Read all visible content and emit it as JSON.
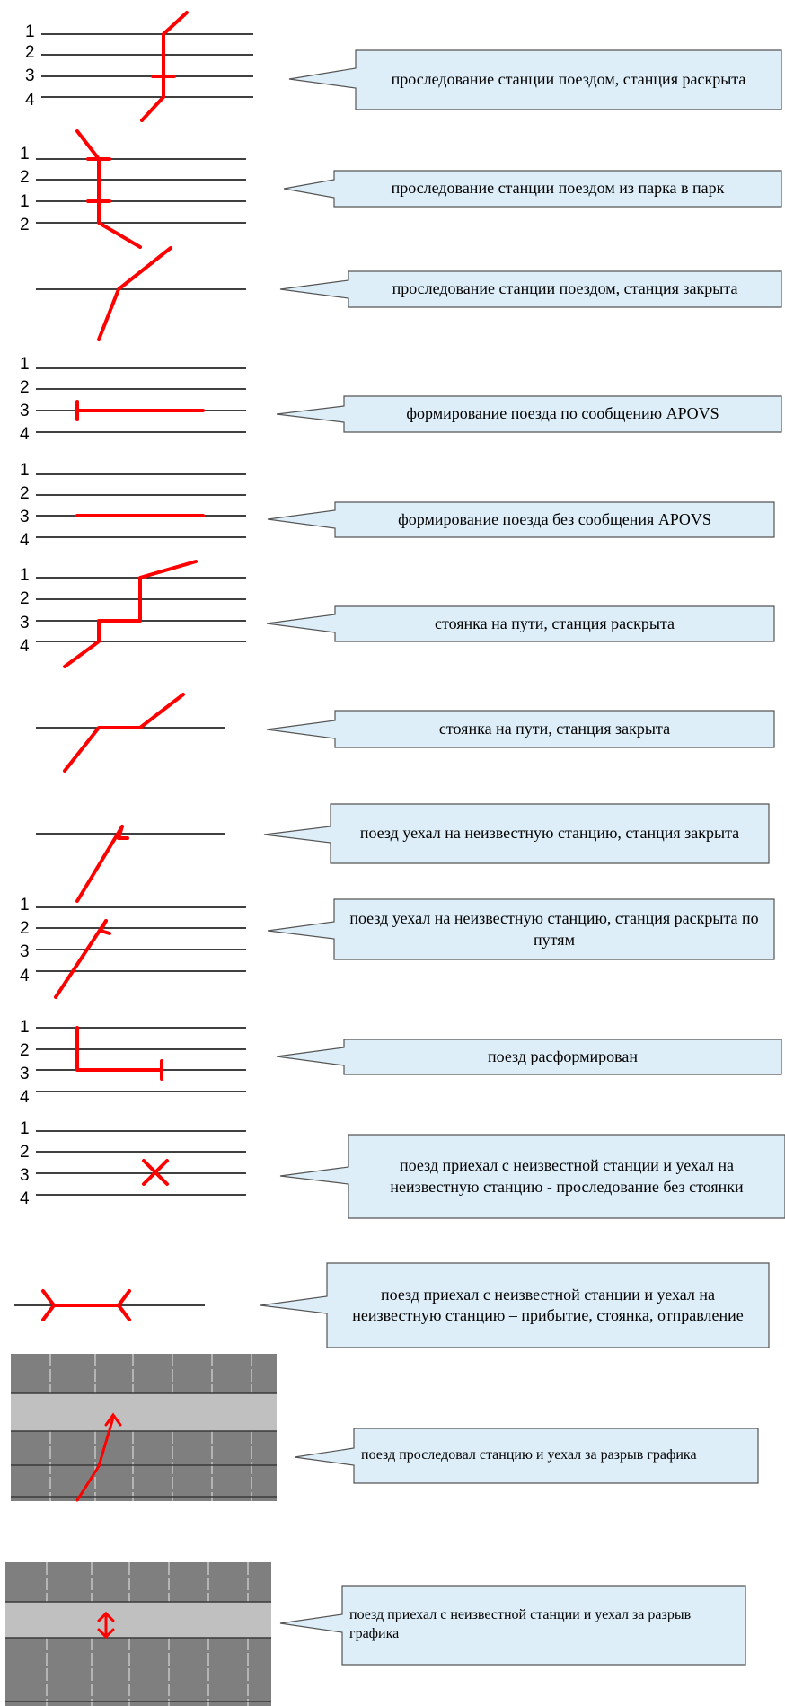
{
  "track_numbers": {
    "set_a": [
      "1",
      "2",
      "3",
      "4"
    ],
    "set_b": [
      "1",
      "2",
      "1",
      "2"
    ]
  },
  "legend": [
    {
      "label": "проследование станции поездом, станция раскрыта"
    },
    {
      "label": "проследование станции поездом из парка в парк"
    },
    {
      "label": "проследование станции поездом, станция закрыта"
    },
    {
      "label": "формирование поезда по сообщению APOVS"
    },
    {
      "label": "формирование поезда без сообщения APOVS"
    },
    {
      "label": "стоянка на пути, станция раскрыта"
    },
    {
      "label": "стоянка на пути, станция закрыта"
    },
    {
      "label": "поезд уехал на неизвестную станцию, станция закрыта"
    },
    {
      "label": "поезд уехал на неизвестную станцию, станция раскрыта по путям"
    },
    {
      "label": "поезд расформирован"
    },
    {
      "label": "поезд приехал с неизвестной станции и уехал на неизвестную станцию - проследование без стоянки"
    },
    {
      "label": "поезд приехал с неизвестной станции и уехал на неизвестную станцию – прибытие, стоянка, отправление"
    },
    {
      "label": "поезд проследовал станцию и уехал за разрыв графика"
    },
    {
      "label": "поезд приехал с неизвестной станции и уехал за разрыв графика"
    }
  ],
  "colors": {
    "train_line": "#ff0000",
    "callout_fill": "#ddeef8",
    "callout_border": "#555555",
    "grid_dark": "#7f7f7f",
    "grid_light": "#c0c0c0"
  }
}
